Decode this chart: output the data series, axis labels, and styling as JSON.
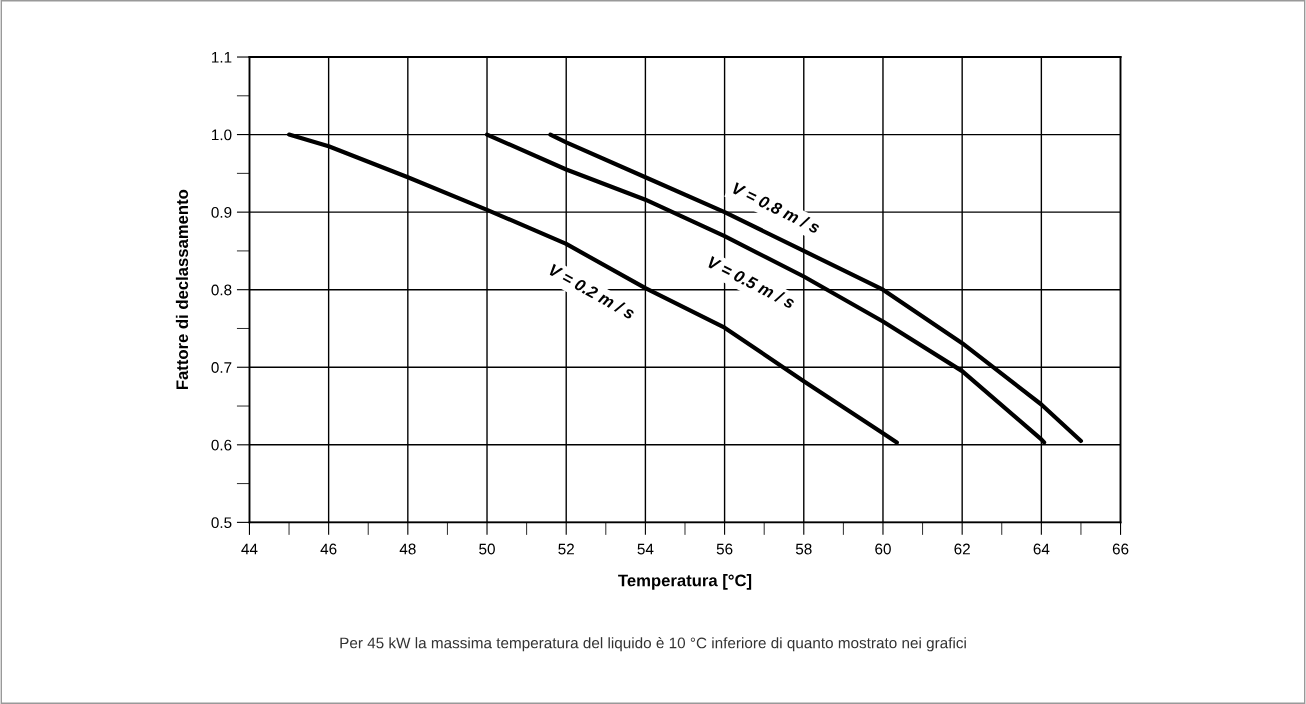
{
  "chart_data": {
    "type": "line",
    "xlabel": "Temperatura [°C]",
    "ylabel": "Fattore di declassamento",
    "annotations": [
      "Per 45 kW la massima temperatura del liquido è 10 °C inferiore di quanto mostrato nei grafici"
    ],
    "series": [
      {
        "name": "V = 0.2 m / s",
        "color": "#000000",
        "x": [
          45,
          46,
          48,
          50,
          52,
          54,
          56,
          58,
          60,
          60.35
        ],
        "values": [
          1.0,
          0.985,
          0.945,
          0.903,
          0.859,
          0.802,
          0.751,
          0.682,
          0.615,
          0.603
        ]
      },
      {
        "name": "V = 0.5 m / s",
        "color": "#000000",
        "x": [
          50,
          52,
          54,
          56,
          58,
          60,
          62,
          64,
          64.07
        ],
        "values": [
          1.0,
          0.955,
          0.916,
          0.869,
          0.817,
          0.759,
          0.695,
          0.607,
          0.603
        ]
      },
      {
        "name": "V = 0.8 m / s",
        "color": "#000000",
        "x": [
          51.6,
          52,
          54,
          56,
          58,
          60,
          62,
          64,
          65
        ],
        "values": [
          1.0,
          0.99,
          0.945,
          0.9,
          0.85,
          0.8,
          0.731,
          0.652,
          0.605
        ]
      }
    ],
    "xlim": [
      44,
      66
    ],
    "xticks": [
      44,
      46,
      48,
      50,
      52,
      54,
      56,
      58,
      60,
      62,
      64,
      66
    ],
    "ylim": [
      0.5,
      1.1
    ],
    "yticks": [
      {
        "value": 0.5,
        "label": "0.5"
      },
      {
        "value": 0.6,
        "label": "0.6"
      },
      {
        "value": 0.7,
        "label": "0.7"
      },
      {
        "value": 0.8,
        "label": "0.8"
      },
      {
        "value": 0.9,
        "label": "0.9"
      },
      {
        "value": 1.0,
        "label": "1.0"
      },
      {
        "value": 1.1,
        "label": "1.1"
      }
    ],
    "grid": true,
    "legend": false,
    "marker": "none",
    "line_style": "solid"
  }
}
